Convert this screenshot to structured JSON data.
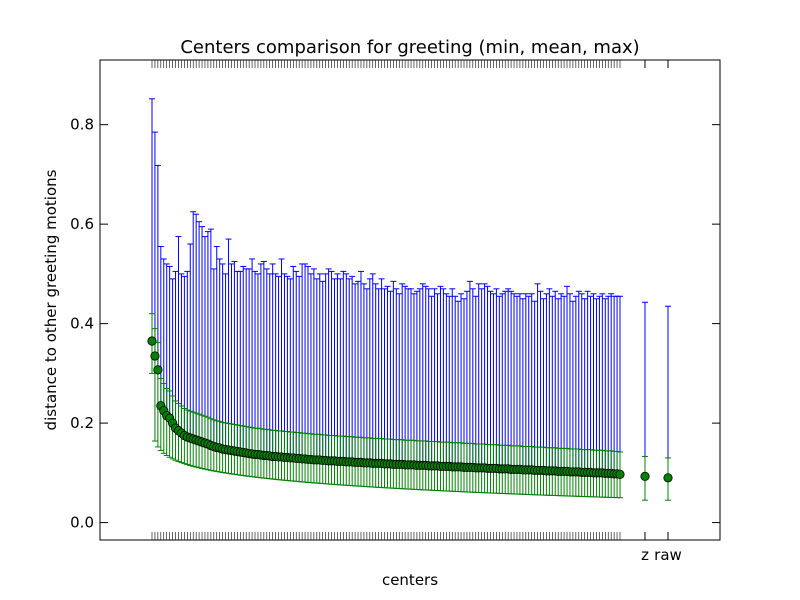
{
  "chart_data": {
    "type": "scatter",
    "title": "Centers comparison for greeting (min, mean, max)",
    "xlabel": "centers",
    "ylabel": "distance to other greeting motions",
    "ylim": [
      -0.035,
      0.93
    ],
    "yticks": [
      0.0,
      0.2,
      0.4,
      0.6,
      0.8
    ],
    "ytick_labels": [
      "0.0",
      "0.2",
      "0.4",
      "0.6",
      "0.8"
    ],
    "xtick_labels": [
      "z",
      "raw"
    ],
    "grid": false,
    "legend": "none",
    "colors": {
      "centers_error": "#0000ff",
      "baseline_error": "#008000",
      "marker": "#008000"
    },
    "centers": {
      "count": 160,
      "max_values": [
        0.852,
        0.785,
        0.718,
        0.555,
        0.53,
        0.52,
        0.515,
        0.49,
        0.505,
        0.575,
        0.5,
        0.495,
        0.505,
        0.56,
        0.625,
        0.62,
        0.605,
        0.595,
        0.575,
        0.585,
        0.59,
        0.51,
        0.555,
        0.53,
        0.52,
        0.5,
        0.57,
        0.52,
        0.525,
        0.505,
        0.505,
        0.515,
        0.51,
        0.51,
        0.53,
        0.505,
        0.5,
        0.52,
        0.525,
        0.51,
        0.5,
        0.52,
        0.5,
        0.495,
        0.53,
        0.5,
        0.495,
        0.49,
        0.515,
        0.505,
        0.495,
        0.52,
        0.52,
        0.515,
        0.5,
        0.51,
        0.49,
        0.5,
        0.485,
        0.5,
        0.51,
        0.505,
        0.49,
        0.5,
        0.49,
        0.505,
        0.5,
        0.49,
        0.495,
        0.48,
        0.485,
        0.505,
        0.48,
        0.47,
        0.49,
        0.5,
        0.48,
        0.47,
        0.49,
        0.47,
        0.475,
        0.465,
        0.485,
        0.47,
        0.46,
        0.48,
        0.475,
        0.47,
        0.47,
        0.46,
        0.465,
        0.47,
        0.48,
        0.475,
        0.47,
        0.455,
        0.47,
        0.46,
        0.475,
        0.47,
        0.46,
        0.455,
        0.47,
        0.455,
        0.445,
        0.46,
        0.45,
        0.465,
        0.485,
        0.47,
        0.455,
        0.48,
        0.47,
        0.48,
        0.475,
        0.465,
        0.46,
        0.47,
        0.455,
        0.46,
        0.465,
        0.47,
        0.465,
        0.46,
        0.455,
        0.46,
        0.45,
        0.46,
        0.455,
        0.46,
        0.445,
        0.48,
        0.465,
        0.45,
        0.46,
        0.47,
        0.455,
        0.465,
        0.45,
        0.46,
        0.455,
        0.475,
        0.46,
        0.445,
        0.455,
        0.465,
        0.46,
        0.45,
        0.465,
        0.455,
        0.46,
        0.45,
        0.455,
        0.46,
        0.45,
        0.455,
        0.46,
        0.455,
        0.455,
        0.455
      ],
      "mean_values": [
        0.365,
        0.335,
        0.307,
        0.235,
        0.225,
        0.215,
        0.21,
        0.2,
        0.19,
        0.185,
        0.18,
        0.175,
        0.172,
        0.17,
        0.168,
        0.166,
        0.164,
        0.162,
        0.16,
        0.158,
        0.155,
        0.153,
        0.151,
        0.15,
        0.148,
        0.147,
        0.146,
        0.145,
        0.144,
        0.143,
        0.142,
        0.141,
        0.14,
        0.139,
        0.138,
        0.137,
        0.137,
        0.136,
        0.135,
        0.135,
        0.134,
        0.133,
        0.133,
        0.132,
        0.132,
        0.131,
        0.131,
        0.13,
        0.13,
        0.129,
        0.129,
        0.128,
        0.128,
        0.127,
        0.127,
        0.126,
        0.126,
        0.126,
        0.125,
        0.125,
        0.124,
        0.124,
        0.124,
        0.123,
        0.123,
        0.123,
        0.122,
        0.122,
        0.122,
        0.121,
        0.121,
        0.121,
        0.12,
        0.12,
        0.12,
        0.119,
        0.119,
        0.119,
        0.119,
        0.118,
        0.118,
        0.118,
        0.117,
        0.117,
        0.117,
        0.117,
        0.116,
        0.116,
        0.116,
        0.116,
        0.115,
        0.115,
        0.115,
        0.115,
        0.114,
        0.114,
        0.114,
        0.114,
        0.113,
        0.113,
        0.113,
        0.113,
        0.112,
        0.112,
        0.112,
        0.112,
        0.111,
        0.111,
        0.111,
        0.111,
        0.11,
        0.11,
        0.11,
        0.11,
        0.109,
        0.109,
        0.109,
        0.109,
        0.108,
        0.108,
        0.108,
        0.108,
        0.107,
        0.107,
        0.107,
        0.107,
        0.106,
        0.106,
        0.106,
        0.106,
        0.105,
        0.105,
        0.105,
        0.105,
        0.104,
        0.104,
        0.104,
        0.104,
        0.103,
        0.103,
        0.103,
        0.103,
        0.102,
        0.102,
        0.102,
        0.102,
        0.101,
        0.101,
        0.101,
        0.101,
        0.1,
        0.1,
        0.1,
        0.1,
        0.099,
        0.099,
        0.099,
        0.098,
        0.098,
        0.097
      ],
      "min_start": 0.3,
      "min_end": 0.05
    },
    "series": [
      {
        "category": "z",
        "min": 0.045,
        "mean": 0.093,
        "max": 0.443
      },
      {
        "category": "raw",
        "min": 0.045,
        "mean": 0.09,
        "max": 0.435
      }
    ]
  }
}
